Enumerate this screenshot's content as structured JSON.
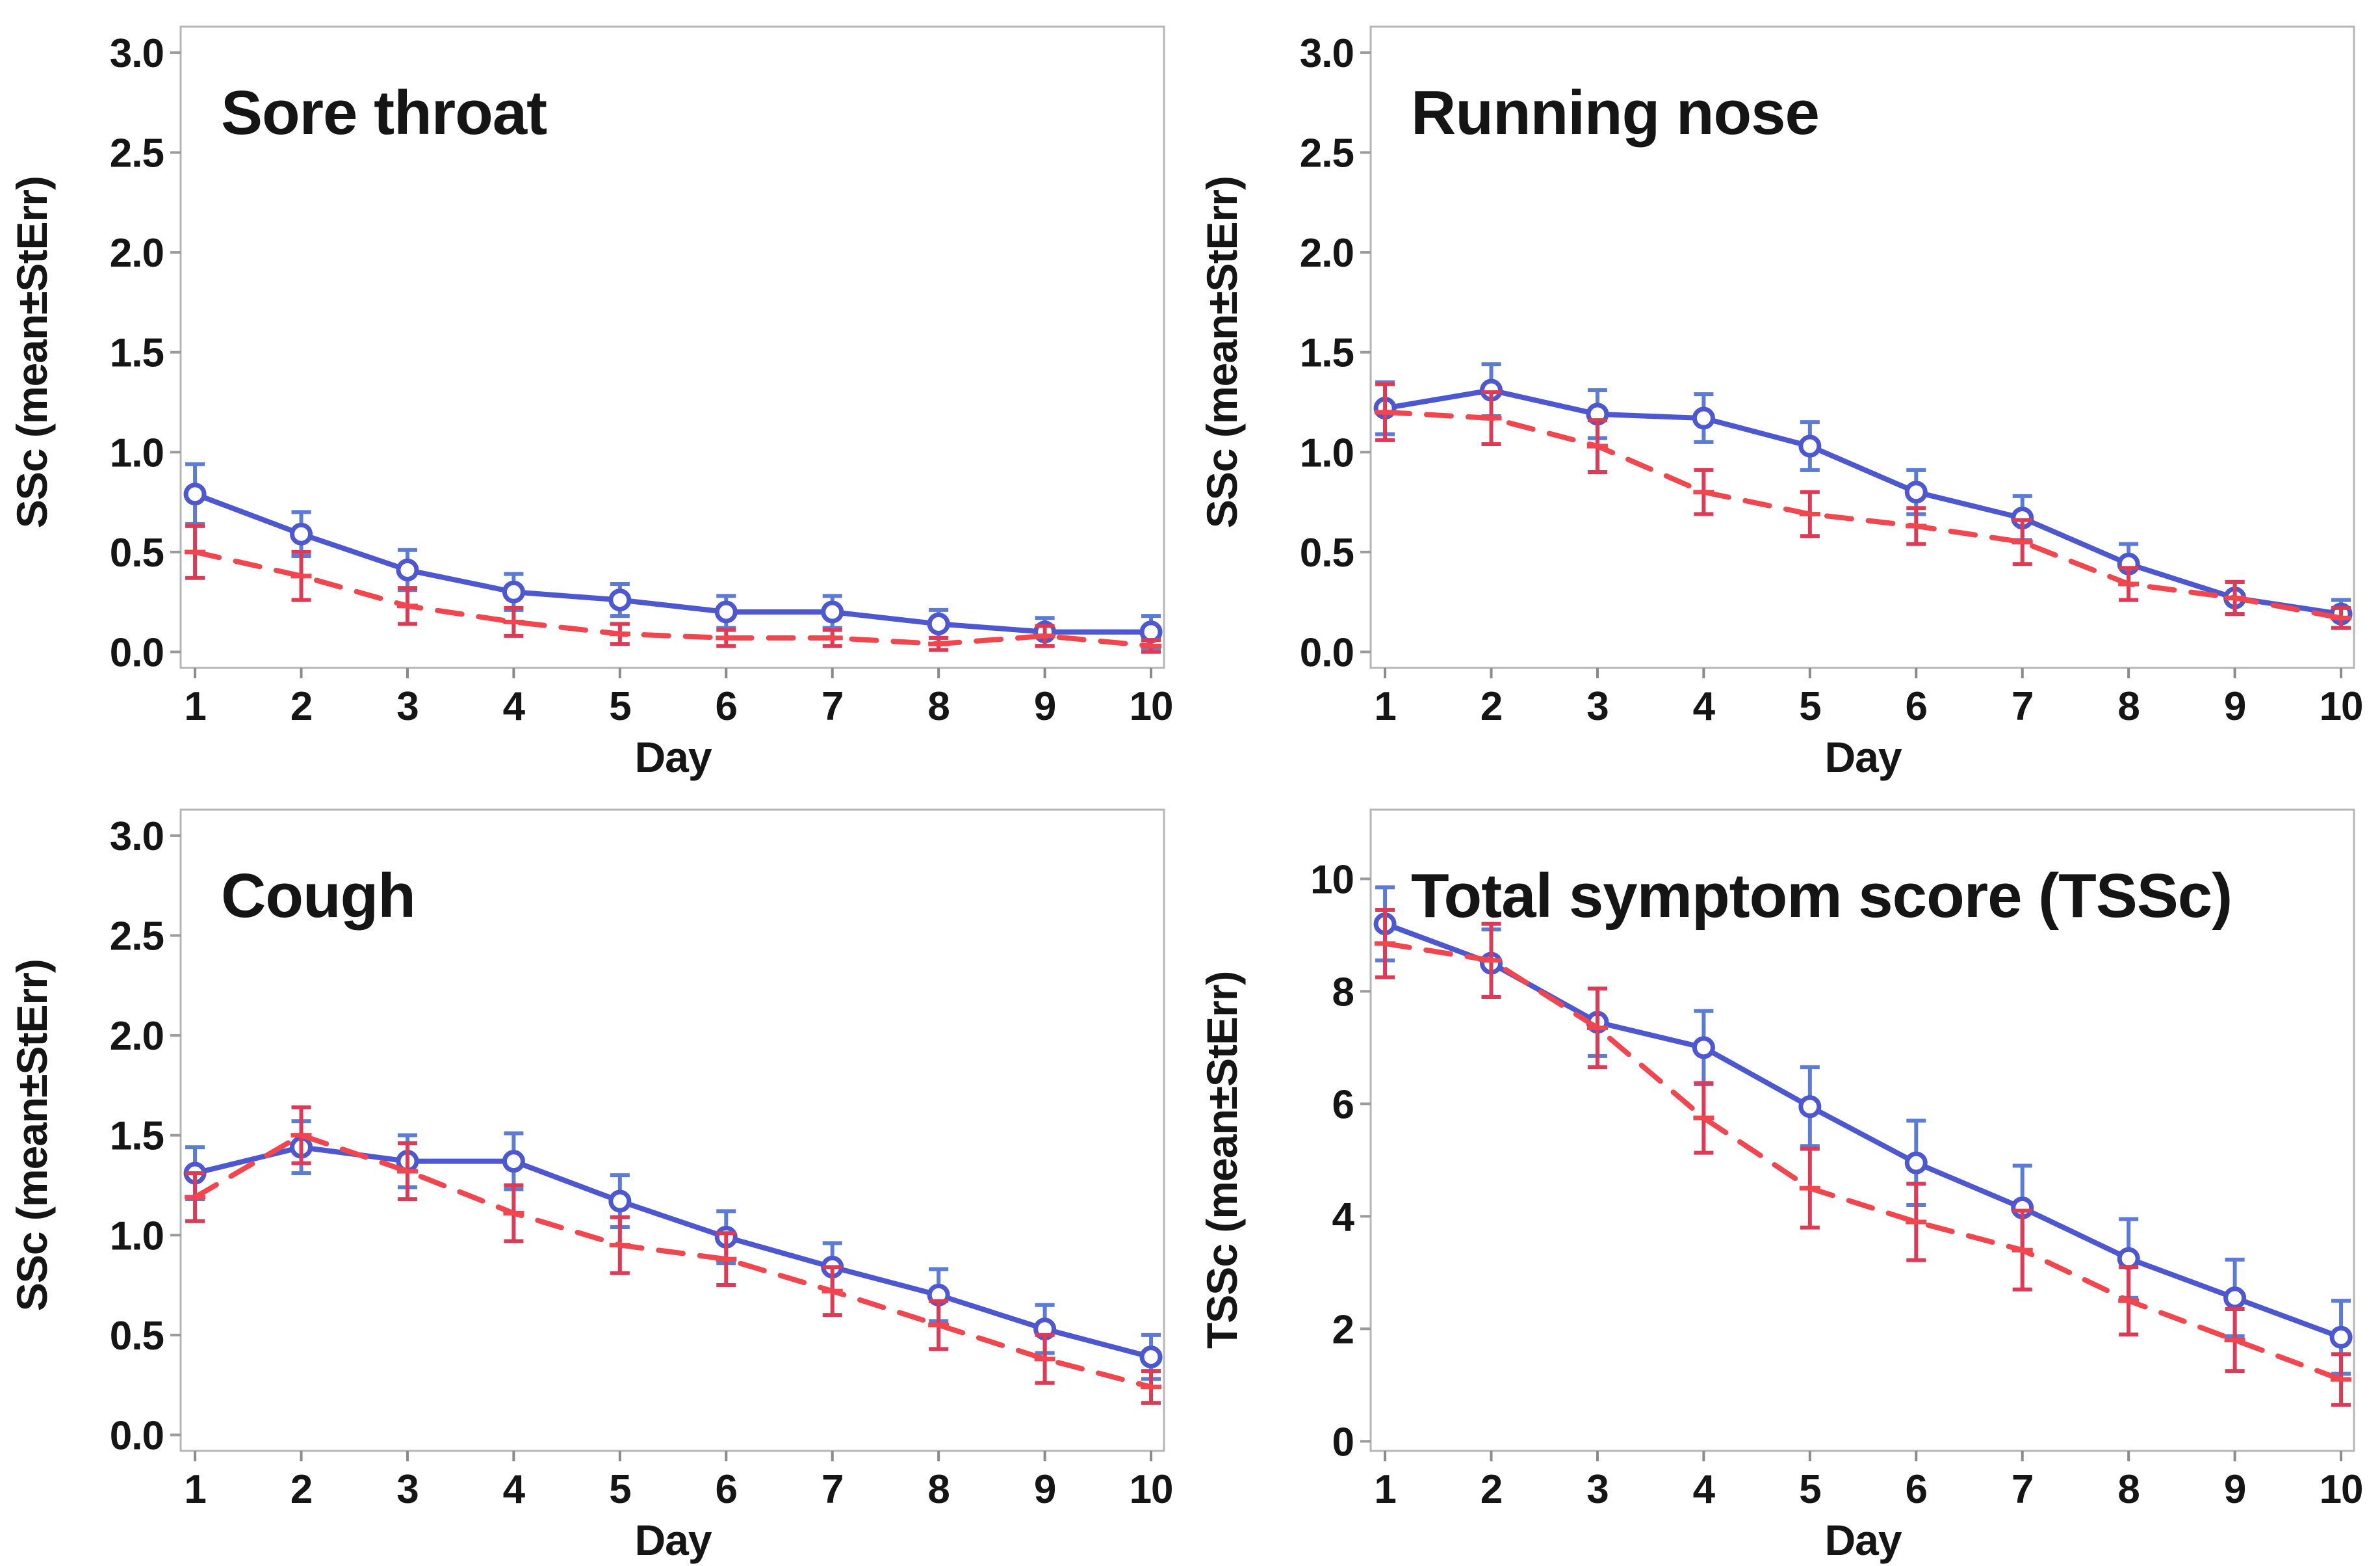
{
  "style": {
    "background": "#ffffff",
    "frame_color": "#b6b6b6",
    "tick_color": "#9b9b9b",
    "text_color": "#151515",
    "blue_series_color": "#4c57d0",
    "blue_errbar_color": "#5b7bd5",
    "red_series_color": "#f2464f",
    "red_errbar_color": "#dd3b55"
  },
  "chart_data": [
    {
      "type": "line",
      "title": "Sore throat",
      "xlabel": "Day",
      "ylabel": "SSc (mean±StErr)",
      "grid": false,
      "legend": "none",
      "x": [
        1,
        2,
        3,
        4,
        5,
        6,
        7,
        8,
        9,
        10
      ],
      "xtick_labels": [
        "1",
        "2",
        "3",
        "4",
        "5",
        "6",
        "7",
        "8",
        "9",
        "10"
      ],
      "yticks": [
        0,
        0.5,
        1,
        1.5,
        2,
        2.5,
        3
      ],
      "ytick_labels": [
        "0.0",
        "0.5",
        "1.0",
        "1.5",
        "2.0",
        "2.5",
        "3.0"
      ],
      "xlim": [
        0.865,
        10.122
      ],
      "ylim": [
        -0.08,
        3.13
      ],
      "series": [
        {
          "name": "blue-solid",
          "color": "#4c57d0",
          "errbar_color": "#5b7bd5",
          "style": "solid",
          "marker": "circle",
          "values": [
            0.79,
            0.59,
            0.41,
            0.3,
            0.26,
            0.2,
            0.2,
            0.14,
            0.1,
            0.1
          ],
          "stderr": [
            0.15,
            0.11,
            0.1,
            0.09,
            0.08,
            0.08,
            0.08,
            0.07,
            0.07,
            0.08
          ]
        },
        {
          "name": "red-dashed",
          "color": "#f2464f",
          "errbar_color": "#dd3b55",
          "style": "dashed",
          "marker": "dash",
          "values": [
            0.5,
            0.38,
            0.23,
            0.15,
            0.09,
            0.07,
            0.07,
            0.04,
            0.08,
            0.03
          ],
          "stderr": [
            0.13,
            0.12,
            0.09,
            0.07,
            0.05,
            0.04,
            0.04,
            0.03,
            0.05,
            0.03
          ]
        }
      ]
    },
    {
      "type": "line",
      "title": "Running nose",
      "xlabel": "Day",
      "ylabel": "SSc (mean±StErr)",
      "grid": false,
      "legend": "none",
      "x": [
        1,
        2,
        3,
        4,
        5,
        6,
        7,
        8,
        9,
        10
      ],
      "xtick_labels": [
        "1",
        "2",
        "3",
        "4",
        "5",
        "6",
        "7",
        "8",
        "9",
        "10"
      ],
      "yticks": [
        0,
        0.5,
        1,
        1.5,
        2,
        2.5,
        3
      ],
      "ytick_labels": [
        "0.0",
        "0.5",
        "1.0",
        "1.5",
        "2.0",
        "2.5",
        "3.0"
      ],
      "xlim": [
        0.865,
        10.122
      ],
      "ylim": [
        -0.08,
        3.13
      ],
      "series": [
        {
          "name": "blue-solid",
          "color": "#4c57d0",
          "errbar_color": "#5b7bd5",
          "style": "solid",
          "marker": "circle",
          "values": [
            1.22,
            1.31,
            1.19,
            1.17,
            1.03,
            0.8,
            0.67,
            0.44,
            0.27,
            0.19
          ],
          "stderr": [
            0.13,
            0.13,
            0.12,
            0.12,
            0.12,
            0.11,
            0.11,
            0.1,
            0.08,
            0.07
          ]
        },
        {
          "name": "red-dashed",
          "color": "#f2464f",
          "errbar_color": "#dd3b55",
          "style": "dashed",
          "marker": "dash",
          "values": [
            1.2,
            1.17,
            1.03,
            0.8,
            0.69,
            0.63,
            0.55,
            0.34,
            0.27,
            0.17
          ],
          "stderr": [
            0.14,
            0.13,
            0.13,
            0.11,
            0.11,
            0.09,
            0.11,
            0.08,
            0.08,
            0.05
          ]
        }
      ]
    },
    {
      "type": "line",
      "title": "Cough",
      "xlabel": "Day",
      "ylabel": "SSc (mean±StErr)",
      "grid": false,
      "legend": "none",
      "x": [
        1,
        2,
        3,
        4,
        5,
        6,
        7,
        8,
        9,
        10
      ],
      "xtick_labels": [
        "1",
        "2",
        "3",
        "4",
        "5",
        "6",
        "7",
        "8",
        "9",
        "10"
      ],
      "yticks": [
        0,
        0.5,
        1,
        1.5,
        2,
        2.5,
        3
      ],
      "ytick_labels": [
        "0.0",
        "0.5",
        "1.0",
        "1.5",
        "2.0",
        "2.5",
        "3.0"
      ],
      "xlim": [
        0.865,
        10.122
      ],
      "ylim": [
        -0.08,
        3.13
      ],
      "series": [
        {
          "name": "blue-solid",
          "color": "#4c57d0",
          "errbar_color": "#5b7bd5",
          "style": "solid",
          "marker": "circle",
          "values": [
            1.31,
            1.44,
            1.37,
            1.37,
            1.17,
            0.99,
            0.84,
            0.7,
            0.53,
            0.39
          ],
          "stderr": [
            0.13,
            0.13,
            0.13,
            0.14,
            0.13,
            0.13,
            0.12,
            0.13,
            0.12,
            0.11
          ]
        },
        {
          "name": "red-dashed",
          "color": "#f2464f",
          "errbar_color": "#dd3b55",
          "style": "dashed",
          "marker": "dash",
          "values": [
            1.19,
            1.5,
            1.32,
            1.11,
            0.95,
            0.88,
            0.72,
            0.55,
            0.38,
            0.24
          ],
          "stderr": [
            0.12,
            0.14,
            0.14,
            0.14,
            0.14,
            0.13,
            0.12,
            0.12,
            0.12,
            0.08
          ]
        }
      ]
    },
    {
      "type": "line",
      "title": "Total symptom score (TSSc)",
      "xlabel": "Day",
      "ylabel": "TSSc (mean±StErr)",
      "grid": false,
      "legend": "none",
      "x": [
        1,
        2,
        3,
        4,
        5,
        6,
        7,
        8,
        9,
        10
      ],
      "xtick_labels": [
        "1",
        "2",
        "3",
        "4",
        "5",
        "6",
        "7",
        "8",
        "9",
        "10"
      ],
      "yticks": [
        0,
        2,
        4,
        6,
        8,
        10
      ],
      "ytick_labels": [
        "0",
        "2",
        "4",
        "6",
        "8",
        "10"
      ],
      "xlim": [
        0.865,
        10.122
      ],
      "ylim": [
        -0.17,
        11.23
      ],
      "series": [
        {
          "name": "blue-solid",
          "color": "#4c57d0",
          "errbar_color": "#5b7bd5",
          "style": "solid",
          "marker": "circle",
          "values": [
            9.2,
            8.5,
            7.45,
            7.0,
            5.95,
            4.95,
            4.15,
            3.25,
            2.55,
            1.85
          ],
          "stderr": [
            0.65,
            0.6,
            0.6,
            0.65,
            0.7,
            0.75,
            0.75,
            0.7,
            0.68,
            0.65
          ]
        },
        {
          "name": "red-dashed",
          "color": "#f2464f",
          "errbar_color": "#dd3b55",
          "style": "dashed",
          "marker": "dash",
          "values": [
            8.85,
            8.55,
            7.35,
            5.75,
            4.5,
            3.9,
            3.4,
            2.5,
            1.8,
            1.1
          ],
          "stderr": [
            0.6,
            0.65,
            0.7,
            0.62,
            0.7,
            0.68,
            0.7,
            0.6,
            0.55,
            0.45
          ]
        }
      ]
    }
  ]
}
